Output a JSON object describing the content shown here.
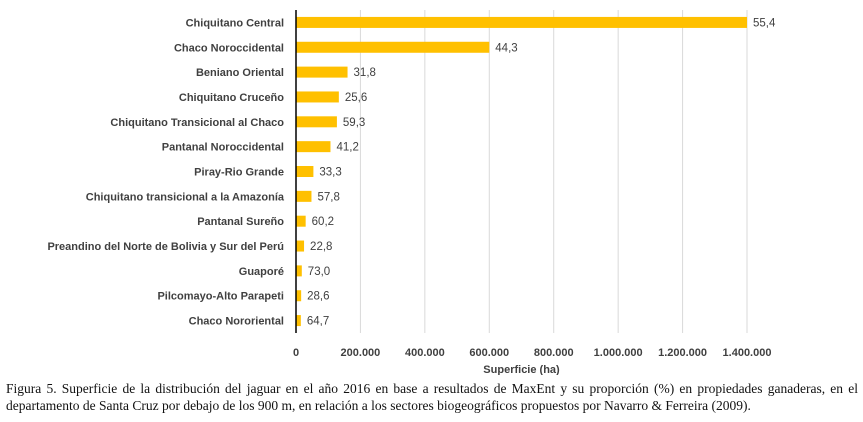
{
  "chart_data": {
    "type": "bar",
    "orientation": "horizontal",
    "categories": [
      "Chiquitano Central",
      "Chaco Noroccidental",
      "Beniano Oriental",
      "Chiquitano Cruceño",
      "Chiquitano Transicional al Chaco",
      "Pantanal Noroccidental",
      "Piray-Rio Grande",
      "Chiquitano transicional a la Amazonía",
      "Pantanal Sureño",
      "Preandino del Norte de Bolivia y Sur del Perú",
      "Guaporé",
      "Pilcomayo-Alto Parapeti",
      "Chaco Nororiental"
    ],
    "values": [
      1400000,
      600000,
      160000,
      133000,
      127000,
      107000,
      54000,
      48000,
      30000,
      25000,
      18000,
      16000,
      15000
    ],
    "data_labels": [
      "55,4",
      "44,3",
      "31,8",
      "25,6",
      "59,3",
      "41,2",
      "33,3",
      "57,8",
      "60,2",
      "22,8",
      "73,0",
      "28,6",
      "64,7"
    ],
    "xlabel": "Superficie (ha)",
    "ylabel": "",
    "xlim": [
      0,
      1400000
    ],
    "ticks": [
      0,
      200000,
      400000,
      600000,
      800000,
      1000000,
      1200000,
      1400000
    ],
    "tick_labels": [
      "0",
      "200.000",
      "400.000",
      "600.000",
      "800.000",
      "1.000.000",
      "1.200.000",
      "1.400.000"
    ],
    "bar_color": "#FFC000",
    "grid": true
  },
  "caption": "Figura 5. Superficie de la distribución del jaguar en el año 2016 en base a resultados de MaxEnt y su proporción (%) en propiedades ganaderas, en el departamento de Santa Cruz por debajo de los 900 m, en relación a los sectores biogeográficos propuestos por Navarro & Ferreira (2009)."
}
